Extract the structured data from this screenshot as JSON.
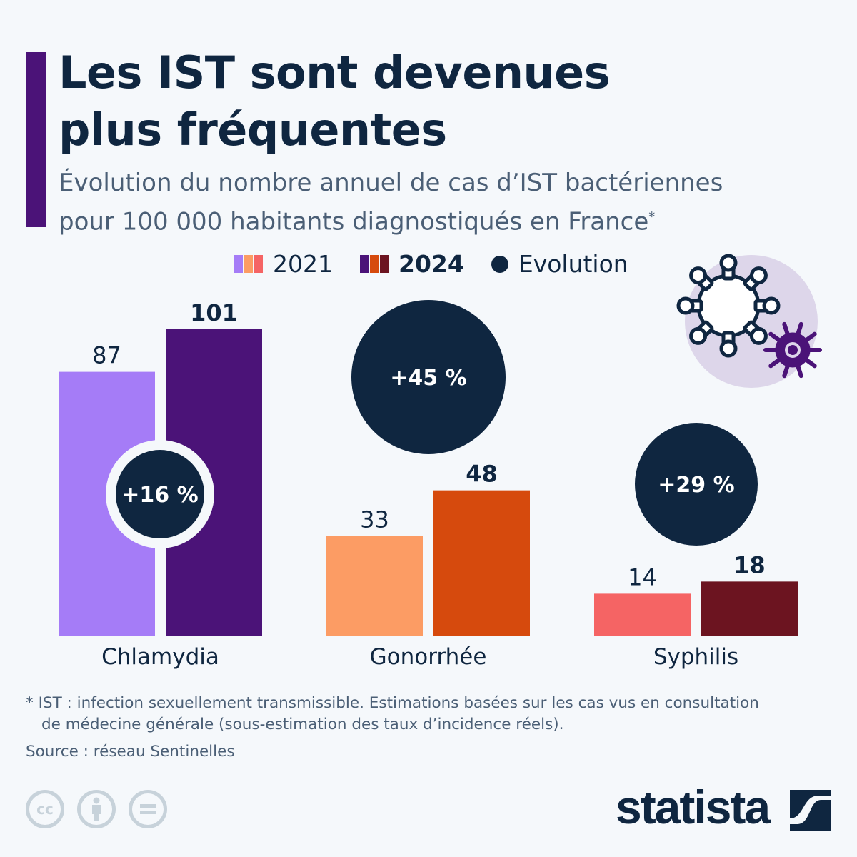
{
  "header": {
    "title_line1": "Les IST sont devenues",
    "title_line2": "plus fréquentes",
    "subtitle_line1": "Évolution du nombre annuel de cas d’IST bactériennes",
    "subtitle_line2": "pour 100 000 habitants diagnostiqués en France",
    "subtitle_mark": "*"
  },
  "chart_data": {
    "type": "bar",
    "categories": [
      "Chlamydia",
      "Gonorrhée",
      "Syphilis"
    ],
    "series": [
      {
        "name": "2021",
        "values": [
          87,
          33,
          14
        ],
        "colors": [
          "#a57cf7",
          "#fc9c64",
          "#f56464"
        ]
      },
      {
        "name": "2024",
        "values": [
          101,
          48,
          18
        ],
        "colors": [
          "#4b1378",
          "#d64a0d",
          "#6c1420"
        ]
      }
    ],
    "evolution": {
      "name": "Evolution",
      "labels": [
        "+16 %",
        "+45 %",
        "+29 %"
      ],
      "color": "#0f2640"
    },
    "ylim": [
      0,
      101
    ],
    "grid": false,
    "legend": "top"
  },
  "footer": {
    "footnote_line1": "* IST : infection sexuellement transmissible. Estimations basées sur les cas vus en consultation",
    "footnote_line2": "de médecine générale (sous-estimation des taux d’incidence réels).",
    "source": "Source : réseau Sentinelles",
    "license_cc": "cc",
    "brand": "statista"
  },
  "icons": [
    "virus-illustration-icon",
    "cc-icon",
    "attribution-icon",
    "no-derivatives-icon",
    "statista-logo-icon"
  ]
}
